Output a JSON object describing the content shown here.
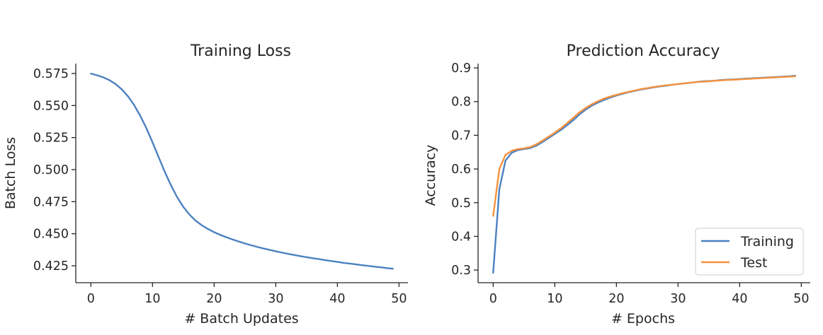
{
  "chart_data": [
    {
      "type": "line",
      "title": "Training Loss",
      "xlabel": "# Batch Updates",
      "ylabel": "Batch Loss",
      "xlim": [
        -2.45,
        51.45
      ],
      "ylim": [
        0.4118,
        0.5827
      ],
      "xticks": [
        0,
        10,
        20,
        30,
        40,
        50
      ],
      "xtick_labels": [
        "0",
        "10",
        "20",
        "30",
        "40",
        "50"
      ],
      "yticks": [
        0.425,
        0.45,
        0.475,
        0.5,
        0.525,
        0.55,
        0.575
      ],
      "ytick_labels": [
        "0.425",
        "0.450",
        "0.475",
        "0.500",
        "0.525",
        "0.550",
        "0.575"
      ],
      "grid": false,
      "legend": "none",
      "series": [
        {
          "color": "#4c81c1",
          "x": [
            0,
            1,
            2,
            3,
            4,
            5,
            6,
            7,
            8,
            9,
            10,
            11,
            12,
            13,
            14,
            15,
            16,
            17,
            18,
            19,
            20,
            21,
            22,
            23,
            24,
            25,
            26,
            27,
            28,
            29,
            30,
            31,
            32,
            33,
            34,
            35,
            36,
            37,
            38,
            39,
            40,
            41,
            42,
            43,
            44,
            45,
            46,
            47,
            48,
            49
          ],
          "y": [
            0.5749,
            0.5736,
            0.572,
            0.5698,
            0.5668,
            0.5627,
            0.5573,
            0.5505,
            0.5421,
            0.5324,
            0.5213,
            0.5097,
            0.4982,
            0.4877,
            0.4785,
            0.4709,
            0.4649,
            0.4602,
            0.4566,
            0.4537,
            0.4512,
            0.4491,
            0.4472,
            0.4455,
            0.4439,
            0.4424,
            0.441,
            0.4397,
            0.4385,
            0.4374,
            0.4363,
            0.4353,
            0.4343,
            0.4334,
            0.4325,
            0.4317,
            0.4309,
            0.4302,
            0.4294,
            0.4287,
            0.428,
            0.4273,
            0.4267,
            0.4261,
            0.4255,
            0.4249,
            0.4243,
            0.4238,
            0.4232,
            0.4227
          ]
        }
      ]
    },
    {
      "type": "line",
      "title": "Prediction Accuracy",
      "xlabel": "# Epochs",
      "ylabel": "Accuracy",
      "xlim": [
        -2.45,
        51.45
      ],
      "ylim": [
        0.2625,
        0.9127
      ],
      "xticks": [
        0,
        10,
        20,
        30,
        40,
        50
      ],
      "xtick_labels": [
        "0",
        "10",
        "20",
        "30",
        "40",
        "50"
      ],
      "yticks": [
        0.3,
        0.4,
        0.5,
        0.6,
        0.7,
        0.8,
        0.9
      ],
      "ytick_labels": [
        "0.3",
        "0.4",
        "0.5",
        "0.6",
        "0.7",
        "0.8",
        "0.9"
      ],
      "grid": false,
      "legend": "lower-right",
      "series": [
        {
          "name": "Training",
          "color": "#4c81c1",
          "x": [
            0,
            1,
            2,
            3,
            4,
            5,
            6,
            7,
            8,
            9,
            10,
            11,
            12,
            13,
            14,
            15,
            16,
            17,
            18,
            19,
            20,
            21,
            22,
            23,
            24,
            25,
            26,
            27,
            28,
            29,
            30,
            31,
            32,
            33,
            34,
            35,
            36,
            37,
            38,
            39,
            40,
            41,
            42,
            43,
            44,
            45,
            46,
            47,
            48,
            49
          ],
          "y": [
            0.292,
            0.54,
            0.625,
            0.648,
            0.656,
            0.659,
            0.662,
            0.669,
            0.68,
            0.692,
            0.704,
            0.716,
            0.73,
            0.745,
            0.762,
            0.776,
            0.788,
            0.797,
            0.805,
            0.812,
            0.818,
            0.823,
            0.828,
            0.832,
            0.836,
            0.839,
            0.842,
            0.845,
            0.847,
            0.85,
            0.852,
            0.854,
            0.856,
            0.858,
            0.86,
            0.861,
            0.862,
            0.864,
            0.865,
            0.866,
            0.867,
            0.868,
            0.869,
            0.87,
            0.871,
            0.872,
            0.873,
            0.874,
            0.875,
            0.877
          ]
        },
        {
          "name": "Test",
          "color": "#f5923e",
          "x": [
            0,
            1,
            2,
            3,
            4,
            5,
            6,
            7,
            8,
            9,
            10,
            11,
            12,
            13,
            14,
            15,
            16,
            17,
            18,
            19,
            20,
            21,
            22,
            23,
            24,
            25,
            26,
            27,
            28,
            29,
            30,
            31,
            32,
            33,
            34,
            35,
            36,
            37,
            38,
            39,
            40,
            41,
            42,
            43,
            44,
            45,
            46,
            47,
            48,
            49
          ],
          "y": [
            0.461,
            0.6,
            0.642,
            0.654,
            0.659,
            0.661,
            0.665,
            0.673,
            0.684,
            0.696,
            0.708,
            0.721,
            0.736,
            0.752,
            0.768,
            0.781,
            0.792,
            0.801,
            0.809,
            0.815,
            0.82,
            0.825,
            0.829,
            0.833,
            0.837,
            0.84,
            0.843,
            0.846,
            0.848,
            0.85,
            0.852,
            0.854,
            0.856,
            0.858,
            0.859,
            0.86,
            0.862,
            0.863,
            0.864,
            0.865,
            0.866,
            0.867,
            0.868,
            0.869,
            0.87,
            0.871,
            0.872,
            0.873,
            0.874,
            0.875
          ]
        }
      ]
    }
  ]
}
